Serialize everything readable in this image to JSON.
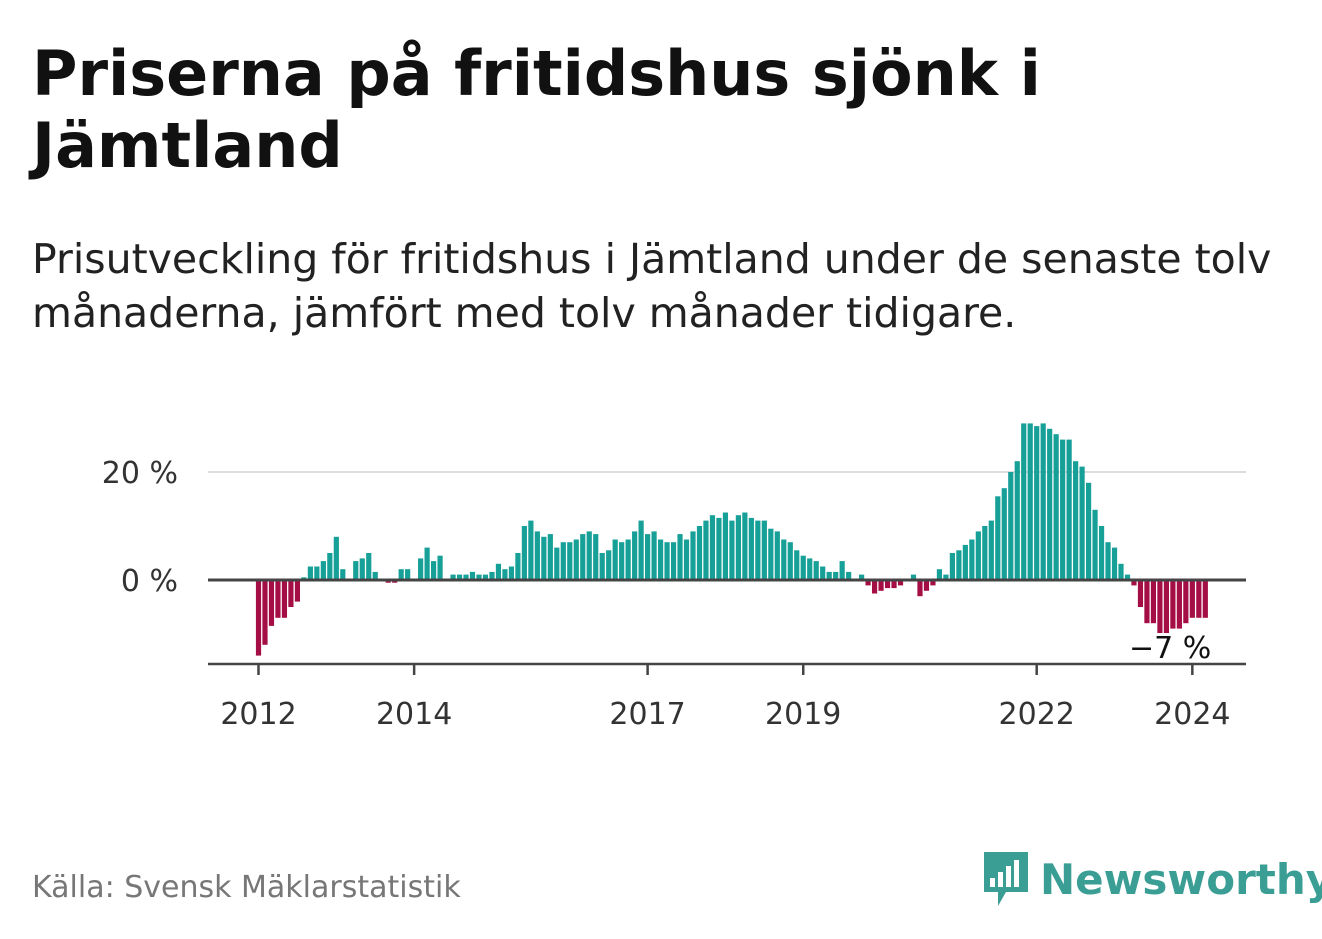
{
  "title": "Priserna på fritidshus sjönk i Jämtland",
  "subtitle": "Prisutveckling för fritidshus i Jämtland under de senaste tolv månaderna, jämfört med tolv månader tidigare.",
  "source": "Källa: Svensk Mäklarstatistik",
  "brand": "Newsworthy",
  "colors": {
    "positive": "#17a098",
    "negative": "#a50e44",
    "grid": "#dddddd",
    "axis": "#444444",
    "brand": "#3a9e95"
  },
  "chart_data": {
    "type": "bar",
    "title": "Priserna på fritidshus sjönk i Jämtland",
    "ylabel": "",
    "xlabel": "",
    "ylim": [
      -15,
      30
    ],
    "yticks": [
      0,
      20
    ],
    "ytick_labels": [
      "0 %",
      "20 %"
    ],
    "xticks": [
      {
        "label": "2012",
        "month_index": 0
      },
      {
        "label": "2014",
        "month_index": 24
      },
      {
        "label": "2017",
        "month_index": 60
      },
      {
        "label": "2019",
        "month_index": 84
      },
      {
        "label": "2022",
        "month_index": 120
      },
      {
        "label": "2024",
        "month_index": 144
      }
    ],
    "start": "2012-01",
    "end": "2024-06",
    "annotation": "−7 %",
    "values": [
      -14,
      -12,
      -8.5,
      -7,
      -7,
      -5,
      -4,
      0.5,
      2.5,
      2.5,
      3.5,
      5,
      8,
      2,
      0,
      3.5,
      4,
      5,
      1.5,
      0,
      -0.5,
      -0.5,
      2,
      2,
      0,
      4,
      6,
      3.5,
      4.5,
      0,
      1,
      1,
      1,
      1.5,
      1,
      1,
      1.5,
      3,
      2,
      2.5,
      5,
      10,
      11,
      9,
      8,
      8.5,
      6,
      7,
      7,
      7.5,
      8.5,
      9,
      8.5,
      5,
      5.5,
      7.5,
      7,
      7.5,
      9,
      11,
      8.5,
      9,
      7.5,
      7,
      7,
      8.5,
      7.5,
      9,
      10,
      11,
      12,
      11.5,
      12.5,
      11,
      12,
      12.5,
      11.5,
      11,
      11,
      9.5,
      9,
      7.5,
      7,
      5.5,
      4.5,
      4,
      3.5,
      2.5,
      1.5,
      1.5,
      3.5,
      1.5,
      0,
      1,
      -1,
      -2.5,
      -2,
      -1.5,
      -1.5,
      -1,
      0,
      1,
      -3,
      -2,
      -1,
      2,
      1,
      5,
      5.5,
      6.5,
      7.5,
      9,
      10,
      11,
      15.5,
      17,
      20,
      22,
      29,
      29,
      28.5,
      29,
      28,
      27,
      26,
      26,
      22,
      21,
      18,
      13,
      10,
      7,
      6,
      3,
      1,
      -1,
      -5,
      -8,
      -8,
      -10,
      -10,
      -9,
      -9,
      -8,
      -7,
      -7,
      -7
    ]
  }
}
